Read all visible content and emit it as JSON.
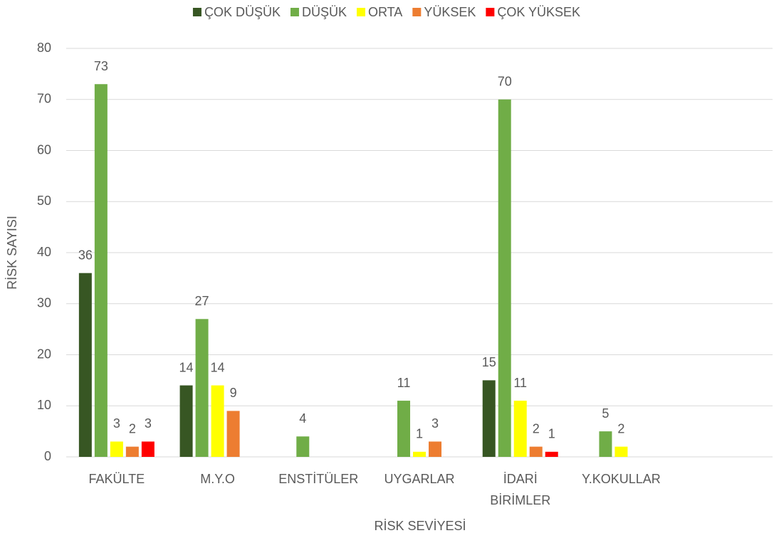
{
  "chart_data": {
    "type": "bar",
    "x_label": "RİSK SEVİYESİ",
    "y_label": "RİSK SAYISI",
    "categories": [
      "FAKÜLTE",
      "M.Y.O",
      "ENSTİTÜLER",
      "UYGARLAR",
      "İDARİ BİRİMLER",
      "Y.KOKULLAR",
      null
    ],
    "series": [
      {
        "name": "ÇOK DÜŞÜK",
        "color": "#375623",
        "values": [
          36,
          14,
          null,
          null,
          15,
          null,
          null
        ]
      },
      {
        "name": "DÜŞÜK",
        "color": "#70ad47",
        "values": [
          73,
          27,
          4,
          11,
          70,
          5,
          null
        ]
      },
      {
        "name": "ORTA",
        "color": "#ffff00",
        "values": [
          3,
          14,
          null,
          1,
          11,
          2,
          null
        ]
      },
      {
        "name": "YÜKSEK",
        "color": "#ed7d31",
        "values": [
          2,
          9,
          null,
          3,
          2,
          null,
          null
        ]
      },
      {
        "name": "ÇOK YÜKSEK",
        "color": "#ff0000",
        "values": [
          3,
          null,
          null,
          null,
          1,
          null,
          null
        ]
      }
    ],
    "ylim": [
      0,
      80
    ],
    "yticks": [
      0,
      10,
      20,
      30,
      40,
      50,
      60,
      70,
      80
    ],
    "grid": true,
    "legend": "top"
  }
}
